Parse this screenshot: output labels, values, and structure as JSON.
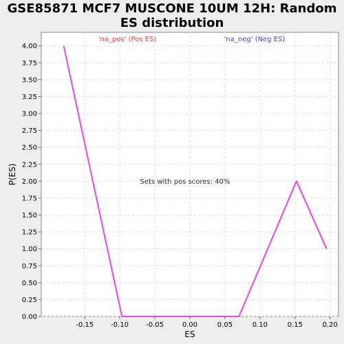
{
  "chart_data": {
    "type": "line",
    "title": [
      "GSE85871 MCF7 MUSCONE 10UM 12H: Random",
      "ES distribution"
    ],
    "xlabel": "ES",
    "ylabel": "P(ES)",
    "xlim": [
      -0.212,
      0.212
    ],
    "ylim": [
      0.0,
      4.2
    ],
    "x_ticks": [
      -0.15,
      -0.1,
      -0.05,
      0.0,
      0.05,
      0.1,
      0.15,
      0.2
    ],
    "x_tick_labels": [
      "-0.15",
      "-0.10",
      "-0.05",
      "0.00",
      "0.05",
      "0.10",
      "0.15",
      "0.20"
    ],
    "y_ticks": [
      0.0,
      0.25,
      0.5,
      0.75,
      1.0,
      1.25,
      1.5,
      1.75,
      2.0,
      2.25,
      2.5,
      2.75,
      3.0,
      3.25,
      3.5,
      3.75,
      4.0
    ],
    "y_tick_labels": [
      "0.00",
      "0.25",
      "0.50",
      "0.75",
      "1.00",
      "1.25",
      "1.50",
      "1.75",
      "2.00",
      "2.25",
      "2.50",
      "2.75",
      "3.00",
      "3.25",
      "3.50",
      "3.75",
      "4.00"
    ],
    "grid": true,
    "series": [
      {
        "color": "#ee44ee",
        "x": [
          -0.18,
          -0.097,
          0.07,
          0.152,
          0.195
        ],
        "y": [
          4.0,
          0.0,
          0.0,
          2.0,
          1.0
        ]
      }
    ],
    "legend": [
      {
        "label": "'na_pos' (Pos ES)",
        "color": "#dd4444"
      },
      {
        "label": "'na_neg' (Neg ES)",
        "color": "#4444cc"
      }
    ],
    "annotation": "Sets with pos scores: 40%"
  }
}
